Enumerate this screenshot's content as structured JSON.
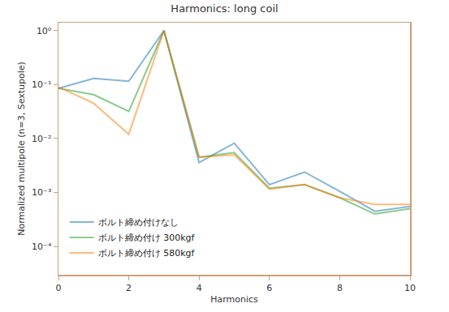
{
  "chart_data": {
    "type": "line",
    "title": "Harmonics: long coil",
    "x_label": "Harmonics",
    "y_label": "Normalized multipole (n=3, Sextupole)",
    "x": [
      0,
      1,
      2,
      3,
      4,
      5,
      6,
      7,
      8,
      9,
      10
    ],
    "series": [
      {
        "name": "ボルト締め付けなし",
        "color": "#1f77b4",
        "values": [
          0.085,
          0.13,
          0.115,
          1.0,
          0.0036,
          0.0082,
          0.0014,
          0.0024,
          0.00105,
          0.00045,
          0.00055
        ]
      },
      {
        "name": "ボルト締め付け 300kgf",
        "color": "#2ca02c",
        "values": [
          0.085,
          0.065,
          0.032,
          1.0,
          0.0045,
          0.0055,
          0.0012,
          0.0014,
          0.0008,
          0.0004,
          0.0005
        ]
      },
      {
        "name": "ボルト締め付け 580kgf",
        "color": "#ff7f0e",
        "values": [
          0.09,
          0.045,
          0.012,
          1.0,
          0.0045,
          0.005,
          0.00115,
          0.0014,
          0.0008,
          0.0006,
          0.0006
        ]
      }
    ],
    "xlim": [
      0,
      10
    ],
    "xticks": [
      0,
      2,
      4,
      6,
      8,
      10
    ],
    "ylim": [
      3e-05,
      1.4
    ],
    "yticks": [
      {
        "value": 0.0001,
        "label": "10⁻⁴"
      },
      {
        "value": 0.001,
        "label": "10⁻³"
      },
      {
        "value": 0.01,
        "label": "10⁻²"
      },
      {
        "value": 0.1,
        "label": "10⁻¹"
      },
      {
        "value": 1,
        "label": "10⁰"
      }
    ],
    "log": "y",
    "grid": false,
    "legend": "lower left"
  }
}
